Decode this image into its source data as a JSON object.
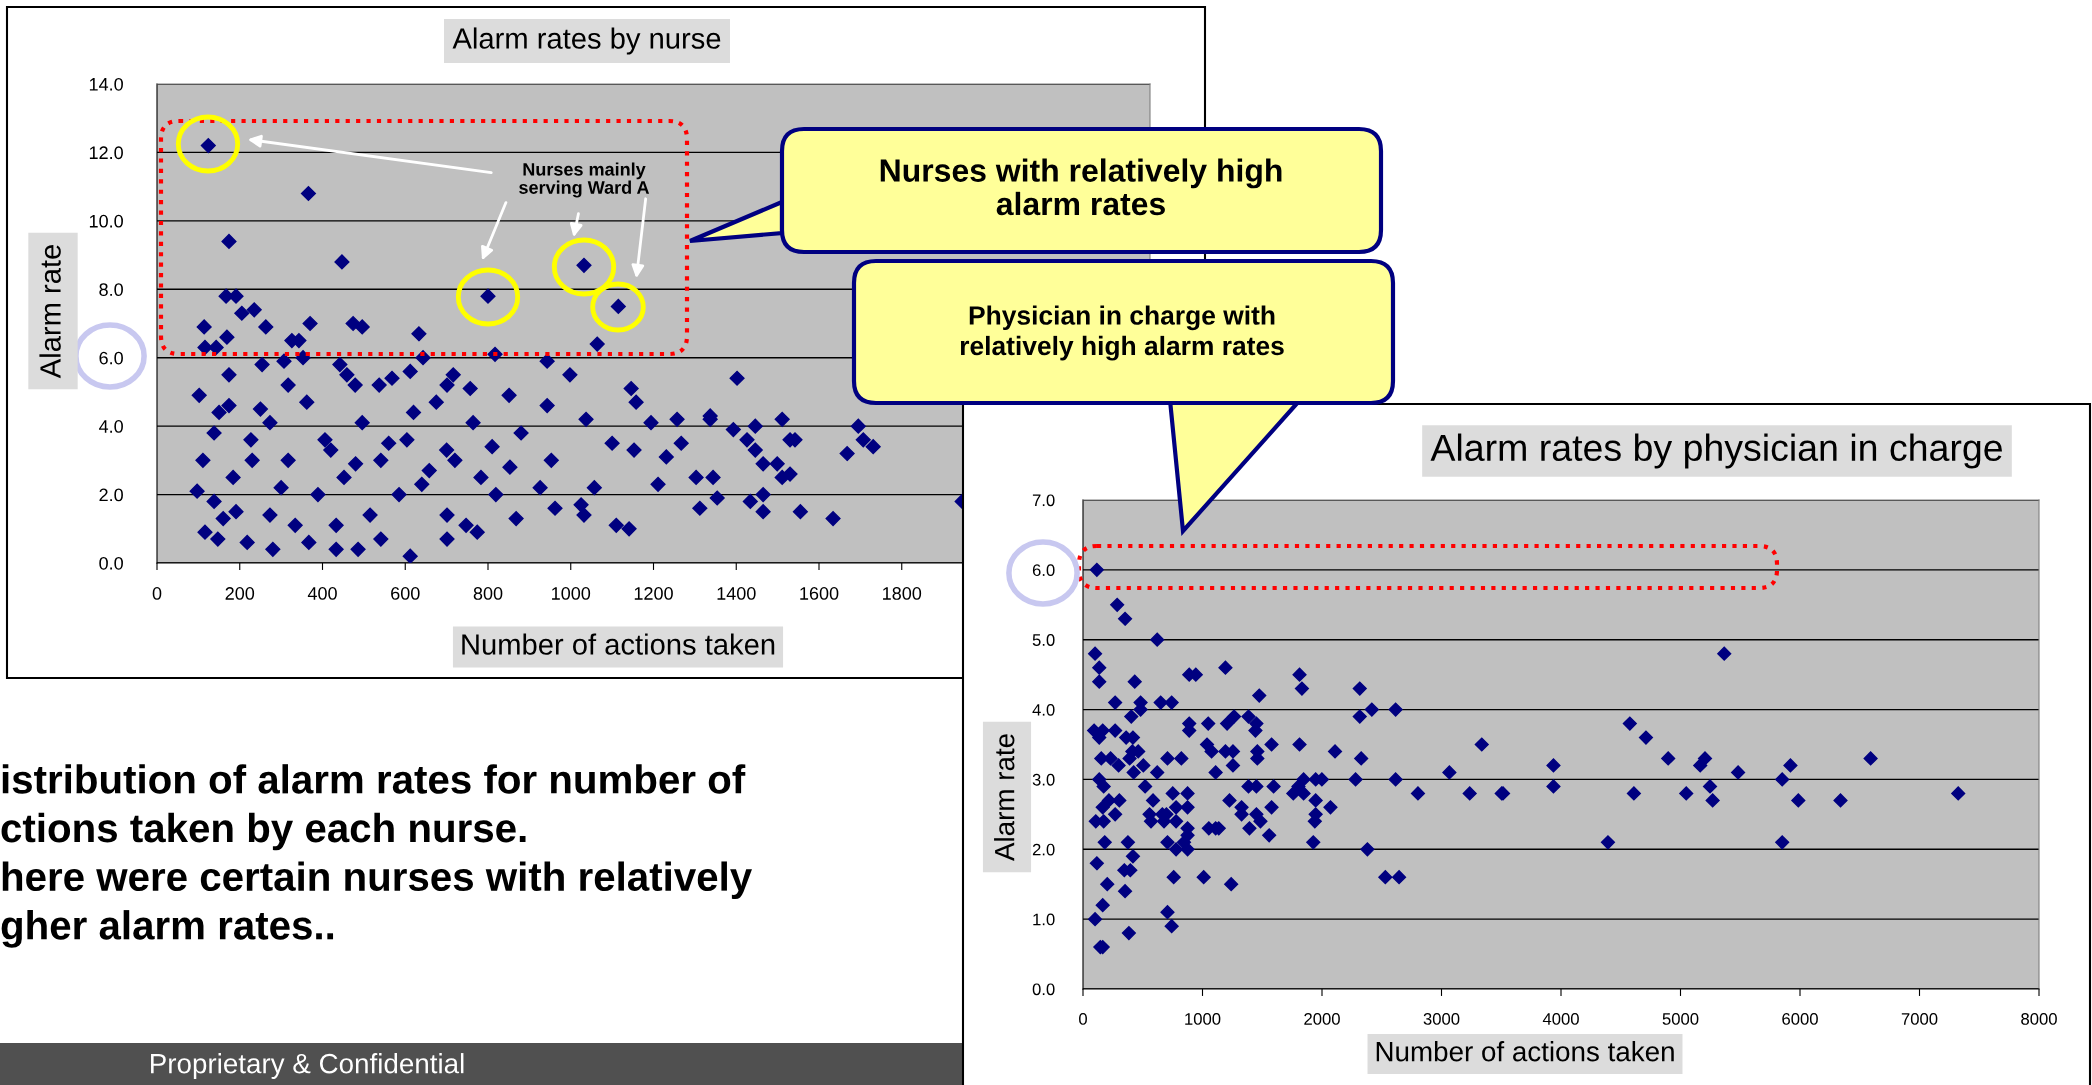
{
  "chart_data": [
    {
      "type": "scatter",
      "title": "Alarm rates by nurse",
      "xlabel": "Number of actions taken",
      "ylabel": "Alarm rate",
      "marker": "diamond",
      "grid": "y",
      "xlim": [
        0,
        2400
      ],
      "xticks": [
        0,
        200,
        400,
        600,
        800,
        1000,
        1200,
        1400,
        1600,
        1800
      ],
      "ylim": [
        0,
        14
      ],
      "yticks": [
        {
          "value": 0,
          "label": "0.0"
        },
        {
          "value": 2,
          "label": "2.0"
        },
        {
          "value": 4,
          "label": "4.0"
        },
        {
          "value": 6,
          "label": "6.0"
        },
        {
          "value": 8,
          "label": "8.0"
        },
        {
          "value": 10,
          "label": "10.0"
        },
        {
          "value": 12,
          "label": "12.0"
        },
        {
          "value": 14,
          "label": "14.0"
        }
      ],
      "annotations": [
        "Nurses mainly\nserving Ward A",
        "Nurses with relatively high\nalarm rates",
        "istribution of alarm rates for number of\nctions taken by each nurse.\nhere were certain nurses with relatively\ngher alarm rates..",
        "Proprietary & Confidential"
      ],
      "series": [
        {
          "color": "#000080",
          "x": [
            124,
            366,
            174,
            447,
            800,
            1032,
            1115,
            1064,
            167,
            191,
            205,
            235,
            114,
            263,
            169,
            370,
            474,
            496,
            633,
            326,
            343,
            116,
            143,
            817,
            643,
            254,
            353,
            307,
            943,
            998,
            716,
            442,
            537,
            479,
            174,
            102,
            1146,
            1158,
            757,
            851,
            1037,
            943,
            1257,
            1337,
            1194,
            174,
            111,
            97,
            116,
            147,
            218,
            280,
            367,
            433,
            486,
            612,
            541,
            701,
            774,
            868,
            1025,
            1032,
            1110,
            1141,
            962,
            1057,
            1211,
            1312,
            1303,
            1231,
            1153,
            1267,
            1100,
            953,
            853,
            819,
            926,
            227,
            184,
            317,
            273,
            406,
            389,
            452,
            515,
            541,
            585,
            604,
            658,
            701,
            720,
            764,
            675,
            496,
            362,
            273,
            138,
            138,
            783,
            810,
            747,
            433,
            334,
            191,
            459,
            568,
            612,
            701,
            317,
            1402,
            1337,
            1393,
            1446,
            1511,
            1426,
            1446,
            1465,
            1499,
            1530,
            1542,
            1530,
            1511,
            1695,
            1707,
            1731,
            1668,
            1344,
            1354,
            1465,
            1434,
            1465,
            1555,
            1634,
            1946,
            150,
            250,
            300,
            420,
            560,
            640,
            700,
            880,
            230,
            480,
            620,
            160
          ],
          "values": [
            12.2,
            10.8,
            9.4,
            8.8,
            7.8,
            8.7,
            7.5,
            6.4,
            7.8,
            7.8,
            7.3,
            7.4,
            6.9,
            6.9,
            6.6,
            7.0,
            7.0,
            6.9,
            6.7,
            6.5,
            6.5,
            6.3,
            6.3,
            6.1,
            6.0,
            5.8,
            6.0,
            5.9,
            5.9,
            5.5,
            5.5,
            5.8,
            5.2,
            5.2,
            5.5,
            4.9,
            5.1,
            4.7,
            5.1,
            4.9,
            4.2,
            4.6,
            4.2,
            4.2,
            4.1,
            4.6,
            3.0,
            2.1,
            0.9,
            0.7,
            0.6,
            0.4,
            0.6,
            0.4,
            0.4,
            0.2,
            0.7,
            0.7,
            0.9,
            1.3,
            1.7,
            1.4,
            1.1,
            1.0,
            1.6,
            2.2,
            2.3,
            1.6,
            2.5,
            3.1,
            3.3,
            3.5,
            3.5,
            3.0,
            2.8,
            2.0,
            2.2,
            3.6,
            2.5,
            3.0,
            1.4,
            3.6,
            2.0,
            2.5,
            1.4,
            3.0,
            2.0,
            3.6,
            2.7,
            1.4,
            3.0,
            4.1,
            4.7,
            4.1,
            4.7,
            4.1,
            3.8,
            1.8,
            2.5,
            3.4,
            1.1,
            1.1,
            1.1,
            1.5,
            5.5,
            5.4,
            5.6,
            5.2,
            5.2,
            5.4,
            4.3,
            3.9,
            4.0,
            4.2,
            3.6,
            3.3,
            2.9,
            2.9,
            3.6,
            3.6,
            2.6,
            2.5,
            4.0,
            3.6,
            3.4,
            3.2,
            2.5,
            1.9,
            2.0,
            1.8,
            1.5,
            1.5,
            1.3,
            1.8,
            4.4,
            4.5,
            2.2,
            3.3,
            3.5,
            2.3,
            3.3,
            3.8,
            3.0,
            2.9,
            4.4,
            1.3
          ]
        }
      ]
    },
    {
      "type": "scatter",
      "title": "Alarm rates by physician in charge",
      "xlabel": "Number of actions taken",
      "ylabel": "Alarm rate",
      "marker": "diamond",
      "grid": "y",
      "xlim": [
        0,
        8000
      ],
      "xticks": [
        0,
        1000,
        2000,
        3000,
        4000,
        5000,
        6000,
        7000,
        8000
      ],
      "ylim": [
        0,
        7
      ],
      "yticks": [
        {
          "value": 0,
          "label": "0.0"
        },
        {
          "value": 1,
          "label": "1.0"
        },
        {
          "value": 2,
          "label": "2.0"
        },
        {
          "value": 3,
          "label": "3.0"
        },
        {
          "value": 4,
          "label": "4.0"
        },
        {
          "value": 5,
          "label": "5.0"
        },
        {
          "value": 6,
          "label": "6.0"
        },
        {
          "value": 7,
          "label": "7.0"
        }
      ],
      "annotations": [
        "Physician in charge with\nrelatively high alarm rates"
      ],
      "series": [
        {
          "color": "#000080",
          "x": [
            116,
            286,
            352,
            621,
            101,
            136,
            136,
            433,
            1192,
            889,
            944,
            1812,
            1832,
            1475,
            2316,
            269,
            482,
            482,
            650,
            742,
            404,
            2316,
            2417,
            2616,
            93,
            165,
            136,
            269,
            361,
            418,
            889,
            889,
            1048,
            1038,
            1076,
            1206,
            1264,
            1385,
            1451,
            1443,
            1578,
            1812,
            2109,
            2328,
            3337,
            3066,
            3937,
            3937,
            153,
            231,
            298,
            413,
            462,
            390,
            424,
            505,
            621,
            707,
            823,
            1110,
            1192,
            1255,
            1255,
            1385,
            1451,
            1459,
            1459,
            1595,
            1846,
            1947,
            1999,
            1803,
            1846,
            1760,
            2281,
            2616,
            2803,
            3236,
            3504,
            136,
            173,
            165,
            217,
            304,
            269,
            107,
            173,
            520,
            586,
            557,
            569,
            664,
            698,
            678,
            779,
            751,
            779,
            875,
            875,
            875,
            875,
            845,
            875,
            779,
            707,
            1226,
            1327,
            1327,
            1451,
            1485,
            1393,
            1053,
            1110,
            1136,
            1558,
            1578,
            1947,
            1947,
            1940,
            2071,
            1927,
            2380,
            2530,
            2645,
            182,
            376,
            418,
            116,
            396,
            346,
            203,
            352,
            165,
            101,
            707,
            742,
            384,
            145,
            165,
            1010,
            1240,
            759,
            5366,
            4576,
            4711,
            4897,
            5205,
            5165,
            5247,
            5269,
            5048,
            4610,
            5482,
            5851,
            5920,
            5986,
            6339,
            6591,
            7324,
            5851,
            4393,
            3515
          ],
          "values": [
            6.0,
            5.5,
            5.3,
            5.0,
            4.8,
            4.6,
            4.4,
            4.4,
            4.6,
            4.5,
            4.5,
            4.5,
            4.3,
            4.2,
            4.3,
            4.1,
            4.1,
            4.0,
            4.1,
            4.1,
            3.9,
            3.9,
            4.0,
            4.0,
            3.7,
            3.7,
            3.6,
            3.7,
            3.6,
            3.6,
            3.8,
            3.7,
            3.8,
            3.5,
            3.4,
            3.8,
            3.9,
            3.9,
            3.8,
            3.7,
            3.5,
            3.5,
            3.4,
            3.3,
            3.5,
            3.1,
            3.2,
            2.9,
            3.3,
            3.3,
            3.2,
            3.4,
            3.4,
            3.3,
            3.1,
            3.2,
            3.1,
            3.3,
            3.3,
            3.1,
            3.4,
            3.4,
            3.2,
            2.9,
            2.9,
            3.4,
            3.3,
            2.9,
            3.0,
            3.0,
            3.0,
            2.9,
            2.8,
            2.8,
            3.0,
            3.0,
            2.8,
            2.8,
            2.8,
            3.0,
            2.9,
            2.6,
            2.7,
            2.7,
            2.5,
            2.4,
            2.4,
            2.9,
            2.7,
            2.5,
            2.4,
            2.5,
            2.5,
            2.4,
            2.4,
            2.8,
            2.6,
            2.8,
            2.6,
            2.3,
            2.2,
            2.1,
            2.0,
            2.0,
            2.1,
            2.7,
            2.6,
            2.5,
            2.5,
            2.4,
            2.3,
            2.3,
            2.3,
            2.3,
            2.2,
            2.6,
            2.7,
            2.5,
            2.4,
            2.6,
            2.1,
            2.0,
            1.6,
            1.6,
            2.1,
            2.1,
            1.9,
            1.8,
            1.7,
            1.7,
            1.5,
            1.4,
            1.2,
            1.0,
            1.1,
            0.9,
            0.8,
            0.6,
            0.6,
            1.6,
            1.5,
            1.6,
            4.8,
            3.8,
            3.6,
            3.3,
            3.3,
            3.2,
            2.9,
            2.7,
            2.8,
            2.8,
            3.1,
            3.0,
            3.2,
            2.7,
            2.7,
            3.3,
            2.8,
            2.1,
            2.1,
            2.8
          ]
        }
      ]
    }
  ]
}
